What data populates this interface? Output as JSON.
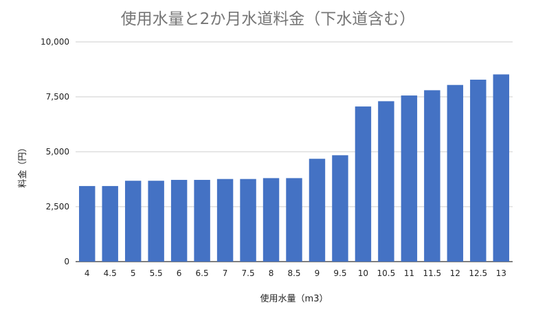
{
  "chart_data": {
    "type": "bar",
    "title": "使用水量と2か月水道料金（下水道含む）",
    "xlabel": "使用水量（m3）",
    "ylabel": "料金（円）",
    "categories": [
      "4",
      "4.5",
      "5",
      "5.5",
      "6",
      "6.5",
      "7",
      "7.5",
      "8",
      "8.5",
      "9",
      "9.5",
      "10",
      "10.5",
      "11",
      "11.5",
      "12",
      "12.5",
      "13"
    ],
    "values": [
      3440,
      3440,
      3680,
      3680,
      3720,
      3720,
      3760,
      3760,
      3800,
      3800,
      4680,
      4840,
      7060,
      7300,
      7560,
      7800,
      8040,
      8280,
      8520
    ],
    "ylim": [
      0,
      10000
    ],
    "yticks": [
      0,
      2500,
      5000,
      7500,
      10000
    ],
    "ytick_labels": [
      "0",
      "2,500",
      "5,000",
      "7,500",
      "10,000"
    ],
    "grid": true,
    "bar_color": "#4472c4",
    "grid_color": "#cccccc"
  }
}
